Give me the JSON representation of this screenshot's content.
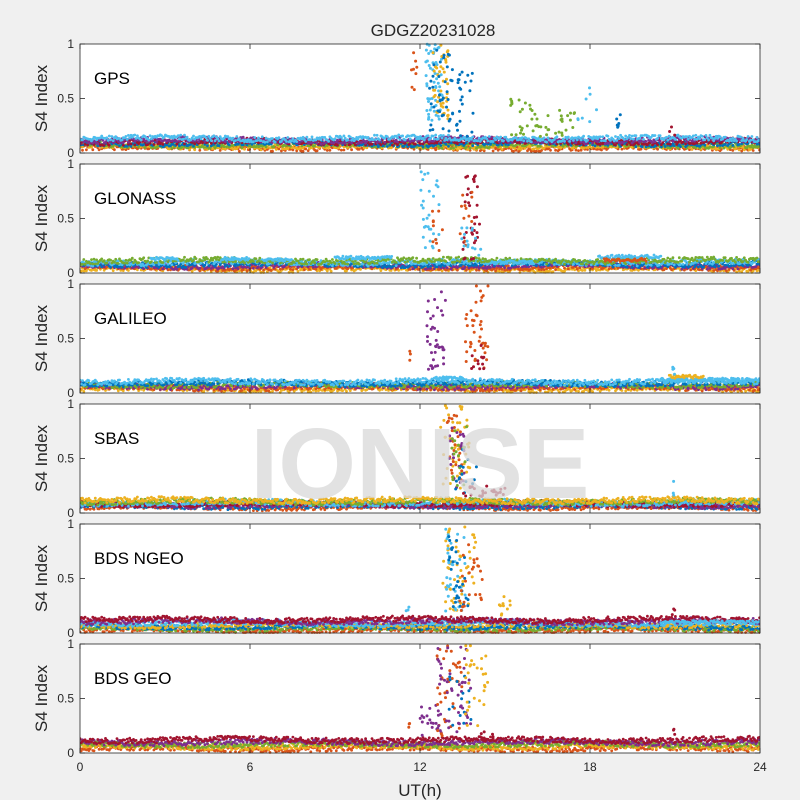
{
  "title": "GDGZ20231028",
  "watermark": "IONISE",
  "xlabel": "UT(h)",
  "ylabel": "S4 Index",
  "colors": {
    "background": "#f0f0f0",
    "axes": "#ffffff",
    "blue": "#0072bd",
    "orange": "#d95319",
    "yellow": "#edb120",
    "purple": "#7e2f8e",
    "green": "#77ac30",
    "cyan": "#4dbeee",
    "red": "#a2142f",
    "watermark": "#d8d8d8"
  },
  "chart_data": {
    "type": "scatter",
    "xlim": [
      0,
      24
    ],
    "ylim": [
      0,
      1
    ],
    "x_ticks": [
      "0",
      "6",
      "12",
      "18",
      "24"
    ],
    "y_ticks": [
      "0",
      "0.5",
      "1"
    ],
    "grid": false,
    "panels": [
      {
        "label": "GPS",
        "baseline": {
          "low": 0.04,
          "high": 0.14,
          "colors": [
            "orange",
            "yellow",
            "green",
            "blue",
            "red",
            "purple",
            "cyan"
          ]
        },
        "bursts": [
          {
            "x0": 11.7,
            "x1": 11.9,
            "y0": 0.55,
            "y1": 0.92,
            "color": "orange",
            "count": 8
          },
          {
            "x0": 12.2,
            "x1": 12.8,
            "y0": 0.3,
            "y1": 1.0,
            "color": "cyan",
            "count": 55
          },
          {
            "x0": 12.4,
            "x1": 13.0,
            "y0": 0.3,
            "y1": 1.0,
            "color": "yellow",
            "count": 45
          },
          {
            "x0": 12.3,
            "x1": 13.2,
            "y0": 0.2,
            "y1": 0.95,
            "color": "blue",
            "count": 40
          },
          {
            "x0": 13.2,
            "x1": 13.9,
            "y0": 0.15,
            "y1": 0.75,
            "color": "blue",
            "count": 25
          },
          {
            "x0": 15.2,
            "x1": 16.0,
            "y0": 0.15,
            "y1": 0.5,
            "color": "green",
            "count": 22
          },
          {
            "x0": 16.0,
            "x1": 17.5,
            "y0": 0.15,
            "y1": 0.4,
            "color": "green",
            "count": 28
          },
          {
            "x0": 17.5,
            "x1": 18.5,
            "y0": 0.15,
            "y1": 0.6,
            "color": "cyan",
            "count": 8
          },
          {
            "x0": 18.9,
            "x1": 19.1,
            "y0": 0.15,
            "y1": 0.45,
            "color": "blue",
            "count": 6
          },
          {
            "x0": 20.8,
            "x1": 21.0,
            "y0": 0.15,
            "y1": 0.3,
            "color": "red",
            "count": 3
          }
        ]
      },
      {
        "label": "GLONASS",
        "baseline": {
          "low": 0.03,
          "high": 0.12,
          "colors": [
            "yellow",
            "orange",
            "purple",
            "blue",
            "cyan",
            "green"
          ]
        },
        "bands": [
          {
            "x0": 2.5,
            "x1": 3.5,
            "y": 0.13,
            "color": "cyan"
          },
          {
            "x0": 5.0,
            "x1": 6.0,
            "y": 0.13,
            "color": "cyan"
          },
          {
            "x0": 6.5,
            "x1": 7.5,
            "y": 0.12,
            "color": "cyan"
          },
          {
            "x0": 9.0,
            "x1": 11.0,
            "y": 0.14,
            "color": "cyan"
          },
          {
            "x0": 14.5,
            "x1": 16.0,
            "y": 0.1,
            "color": "cyan"
          },
          {
            "x0": 18.3,
            "x1": 20.5,
            "y": 0.15,
            "color": "cyan"
          },
          {
            "x0": 18.5,
            "x1": 20.0,
            "y": 0.12,
            "color": "orange"
          }
        ],
        "bursts": [
          {
            "x0": 12.0,
            "x1": 12.7,
            "y0": 0.2,
            "y1": 1.0,
            "color": "cyan",
            "count": 30
          },
          {
            "x0": 12.4,
            "x1": 12.8,
            "y0": 0.2,
            "y1": 0.6,
            "color": "orange",
            "count": 10
          },
          {
            "x0": 13.5,
            "x1": 14.1,
            "y0": 0.1,
            "y1": 0.9,
            "color": "red",
            "count": 35
          },
          {
            "x0": 13.4,
            "x1": 13.9,
            "y0": 0.2,
            "y1": 0.8,
            "color": "orange",
            "count": 12
          },
          {
            "x0": 13.4,
            "x1": 14.2,
            "y0": 0.15,
            "y1": 0.45,
            "color": "cyan",
            "count": 15
          }
        ]
      },
      {
        "label": "GALILEO",
        "baseline": {
          "low": 0.03,
          "high": 0.11,
          "colors": [
            "yellow",
            "orange",
            "purple",
            "green",
            "blue",
            "cyan"
          ]
        },
        "bands": [
          {
            "x0": 12.5,
            "x1": 13.5,
            "y": 0.14,
            "color": "cyan"
          },
          {
            "x0": 20.5,
            "x1": 24.0,
            "y": 0.12,
            "color": "cyan"
          },
          {
            "x0": 20.8,
            "x1": 22.0,
            "y": 0.15,
            "color": "yellow"
          }
        ],
        "bursts": [
          {
            "x0": 12.2,
            "x1": 12.9,
            "y0": 0.2,
            "y1": 0.95,
            "color": "purple",
            "count": 40
          },
          {
            "x0": 11.6,
            "x1": 11.8,
            "y0": 0.3,
            "y1": 0.4,
            "color": "orange",
            "count": 3
          },
          {
            "x0": 13.6,
            "x1": 14.4,
            "y0": 0.2,
            "y1": 1.0,
            "color": "orange",
            "count": 40
          },
          {
            "x0": 13.8,
            "x1": 14.3,
            "y0": 0.2,
            "y1": 0.5,
            "color": "red",
            "count": 12
          },
          {
            "x0": 20.9,
            "x1": 21.0,
            "y0": 0.15,
            "y1": 0.25,
            "color": "cyan",
            "count": 4
          }
        ]
      },
      {
        "label": "SBAS",
        "baseline": {
          "low": 0.05,
          "high": 0.12,
          "colors": [
            "orange",
            "blue",
            "purple",
            "red",
            "cyan",
            "green",
            "yellow"
          ]
        },
        "bursts": [
          {
            "x0": 12.7,
            "x1": 13.8,
            "y0": 0.2,
            "y1": 1.0,
            "color": "yellow",
            "count": 45
          },
          {
            "x0": 12.9,
            "x1": 13.6,
            "y0": 0.3,
            "y1": 0.95,
            "color": "orange",
            "count": 25
          },
          {
            "x0": 13.0,
            "x1": 13.6,
            "y0": 0.2,
            "y1": 0.9,
            "color": "purple",
            "count": 25
          },
          {
            "x0": 13.0,
            "x1": 13.8,
            "y0": 0.2,
            "y1": 0.8,
            "color": "green",
            "count": 18
          },
          {
            "x0": 13.2,
            "x1": 14.0,
            "y0": 0.15,
            "y1": 0.6,
            "color": "blue",
            "count": 15
          },
          {
            "x0": 13.5,
            "x1": 15.0,
            "y0": 0.15,
            "y1": 0.25,
            "color": "red",
            "count": 25
          },
          {
            "x0": 20.9,
            "x1": 21.0,
            "y0": 0.15,
            "y1": 0.3,
            "color": "cyan",
            "count": 3
          }
        ]
      },
      {
        "label": "BDS NGEO",
        "baseline": {
          "low": 0.02,
          "high": 0.13,
          "colors": [
            "orange",
            "green",
            "blue",
            "yellow",
            "cyan",
            "purple",
            "red"
          ]
        },
        "bands": [
          {
            "x0": 20.5,
            "x1": 24.0,
            "y": 0.1,
            "color": "cyan"
          }
        ],
        "bursts": [
          {
            "x0": 11.5,
            "x1": 11.7,
            "y0": 0.15,
            "y1": 0.25,
            "color": "cyan",
            "count": 3
          },
          {
            "x0": 12.8,
            "x1": 14.0,
            "y0": 0.2,
            "y1": 1.0,
            "color": "yellow",
            "count": 55
          },
          {
            "x0": 12.9,
            "x1": 13.6,
            "y0": 0.2,
            "y1": 1.0,
            "color": "cyan",
            "count": 35
          },
          {
            "x0": 13.0,
            "x1": 13.7,
            "y0": 0.2,
            "y1": 0.9,
            "color": "blue",
            "count": 30
          },
          {
            "x0": 13.4,
            "x1": 14.2,
            "y0": 0.2,
            "y1": 0.9,
            "color": "orange",
            "count": 25
          },
          {
            "x0": 14.8,
            "x1": 15.2,
            "y0": 0.15,
            "y1": 0.35,
            "color": "yellow",
            "count": 10
          },
          {
            "x0": 20.9,
            "x1": 21.0,
            "y0": 0.15,
            "y1": 0.25,
            "color": "red",
            "count": 3
          }
        ]
      },
      {
        "label": "BDS GEO",
        "baseline": {
          "low": 0.03,
          "high": 0.13,
          "colors": [
            "orange",
            "yellow",
            "green",
            "purple",
            "red"
          ]
        },
        "bursts": [
          {
            "x0": 11.5,
            "x1": 11.7,
            "y0": 0.2,
            "y1": 0.3,
            "color": "orange",
            "count": 3
          },
          {
            "x0": 12.0,
            "x1": 12.8,
            "y0": 0.15,
            "y1": 0.45,
            "color": "purple",
            "count": 20
          },
          {
            "x0": 12.6,
            "x1": 13.5,
            "y0": 0.15,
            "y1": 1.0,
            "color": "orange",
            "count": 40
          },
          {
            "x0": 12.6,
            "x1": 13.8,
            "y0": 0.15,
            "y1": 1.0,
            "color": "purple",
            "count": 45
          },
          {
            "x0": 13.0,
            "x1": 13.8,
            "y0": 0.2,
            "y1": 0.8,
            "color": "blue",
            "count": 15
          },
          {
            "x0": 13.5,
            "x1": 14.4,
            "y0": 0.2,
            "y1": 1.0,
            "color": "yellow",
            "count": 30
          },
          {
            "x0": 14.0,
            "x1": 14.6,
            "y0": 0.1,
            "y1": 0.2,
            "color": "red",
            "count": 10
          },
          {
            "x0": 20.9,
            "x1": 21.0,
            "y0": 0.15,
            "y1": 0.25,
            "color": "red",
            "count": 3
          }
        ]
      }
    ]
  }
}
